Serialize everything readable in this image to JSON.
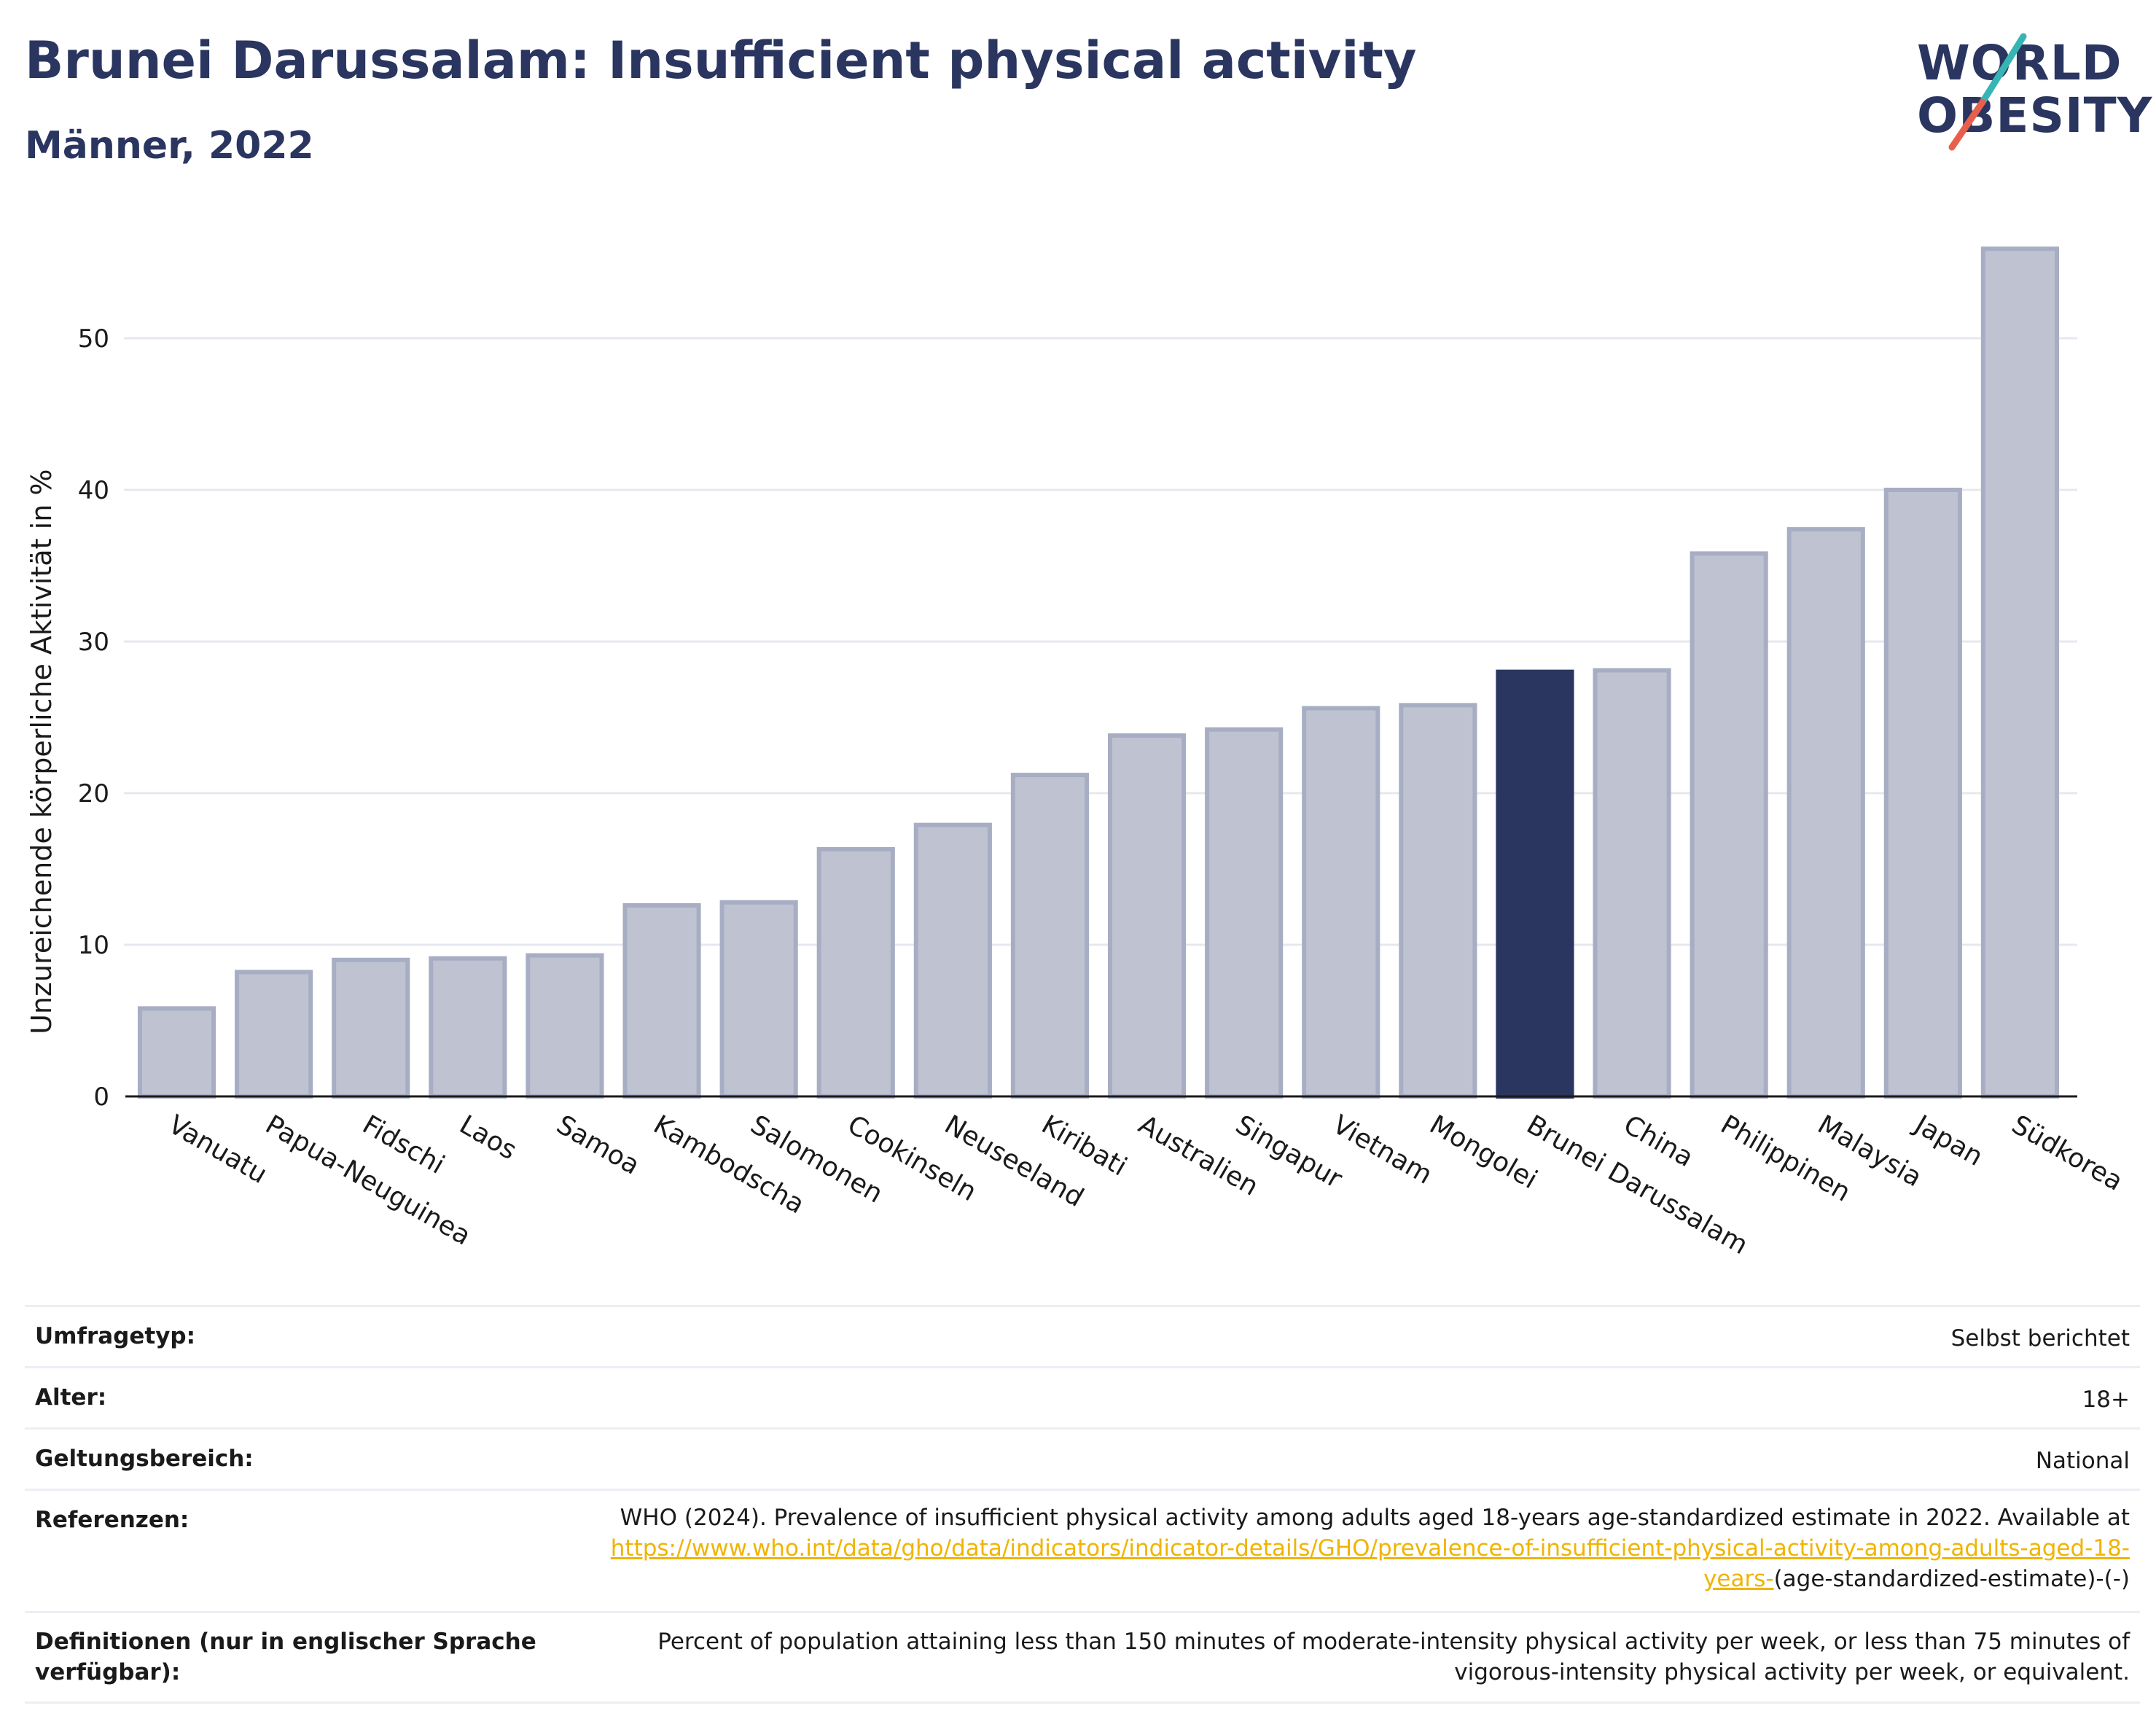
{
  "header": {
    "title": "Brunei Darussalam: Insufficient physical activity",
    "subtitle": "Männer, 2022"
  },
  "logo": {
    "line1": "WORLD",
    "line2": "OBESITY",
    "slash_colors": [
      "#37b5b5",
      "#e8604c"
    ]
  },
  "colors": {
    "bar": "#bfc3d1",
    "bar_border": "#a7adc3",
    "highlight": "#2a3560",
    "grid": "#e6e8ef",
    "axis": "#1a1a1a"
  },
  "chart_data": {
    "type": "bar",
    "categories": [
      "Vanuatu",
      "Papua-Neuguinea",
      "Fidschi",
      "Laos",
      "Samoa",
      "Kambodscha",
      "Salomonen",
      "Cookinseln",
      "Neuseeland",
      "Kiribati",
      "Australien",
      "Singapur",
      "Vietnam",
      "Mongolei",
      "Brunei Darussalam",
      "China",
      "Philippinen",
      "Malaysia",
      "Japan",
      "Südkorea"
    ],
    "values": [
      5.8,
      8.2,
      9.0,
      9.1,
      9.3,
      12.6,
      12.8,
      16.3,
      17.9,
      21.2,
      23.8,
      24.2,
      25.6,
      25.8,
      28.0,
      28.1,
      35.8,
      37.4,
      40.0,
      55.9
    ],
    "highlight": "Brunei Darussalam",
    "ylabel": "Unzureichende körperliche Aktivität in %",
    "xlabel": "",
    "ylim": [
      0,
      57
    ],
    "yticks": [
      0,
      10,
      20,
      30,
      40,
      50
    ],
    "grid": true,
    "legend": "none"
  },
  "meta": {
    "rows": [
      {
        "label": "Umfragetyp:",
        "value": "Selbst berichtet"
      },
      {
        "label": "Alter:",
        "value": "18+"
      },
      {
        "label": "Geltungsbereich:",
        "value": "National"
      },
      {
        "label": "Referenzen:",
        "value": "WHO (2024). Prevalence of insufficient physical activity among adults aged 18-years age-standardized estimate in 2022. Available at",
        "link": "https://www.who.int/data/gho/data/indicators/indicator-details/GHO/prevalence-of-insufficient-physical-activity-among-adults-aged-18-years-",
        "suffix": "(age-standardized-estimate)-(-)"
      },
      {
        "label": "Definitionen (nur in englischer Sprache verfügbar):",
        "value": "Percent of population attaining less than 150 minutes of moderate-intensity physical activity per week, or less than 75 minutes of vigorous-intensity physical activity per week, or equivalent."
      }
    ]
  }
}
